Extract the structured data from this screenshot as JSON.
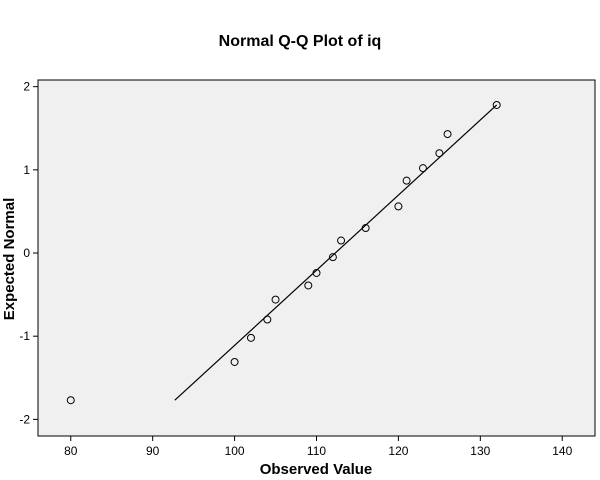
{
  "chart_data": {
    "type": "scatter",
    "title": "Normal Q-Q Plot of iq",
    "xlabel": "Observed Value",
    "ylabel": "Expected Normal",
    "xlim": [
      76,
      144
    ],
    "ylim": [
      -2.2,
      2.08
    ],
    "xticks": [
      80,
      90,
      100,
      110,
      120,
      130,
      140
    ],
    "yticks": [
      -2,
      -1,
      0,
      1,
      2
    ],
    "grid": false,
    "legend": "none",
    "colors": {
      "plot_background": "#f0f0f0",
      "marker_edge": "#000000",
      "line": "#000000"
    },
    "points": [
      {
        "x": 80,
        "y": -1.77
      },
      {
        "x": 100,
        "y": -1.31
      },
      {
        "x": 102,
        "y": -1.02
      },
      {
        "x": 104,
        "y": -0.8
      },
      {
        "x": 105,
        "y": -0.56
      },
      {
        "x": 109,
        "y": -0.39
      },
      {
        "x": 110,
        "y": -0.24
      },
      {
        "x": 112,
        "y": -0.05
      },
      {
        "x": 113,
        "y": 0.15
      },
      {
        "x": 116,
        "y": 0.3
      },
      {
        "x": 120,
        "y": 0.56
      },
      {
        "x": 121,
        "y": 0.87
      },
      {
        "x": 123,
        "y": 1.02
      },
      {
        "x": 125,
        "y": 1.2
      },
      {
        "x": 126,
        "y": 1.43
      },
      {
        "x": 132,
        "y": 1.78
      }
    ],
    "reference_line": [
      {
        "x": 92.7,
        "y": -1.77
      },
      {
        "x": 132,
        "y": 1.78
      }
    ]
  }
}
